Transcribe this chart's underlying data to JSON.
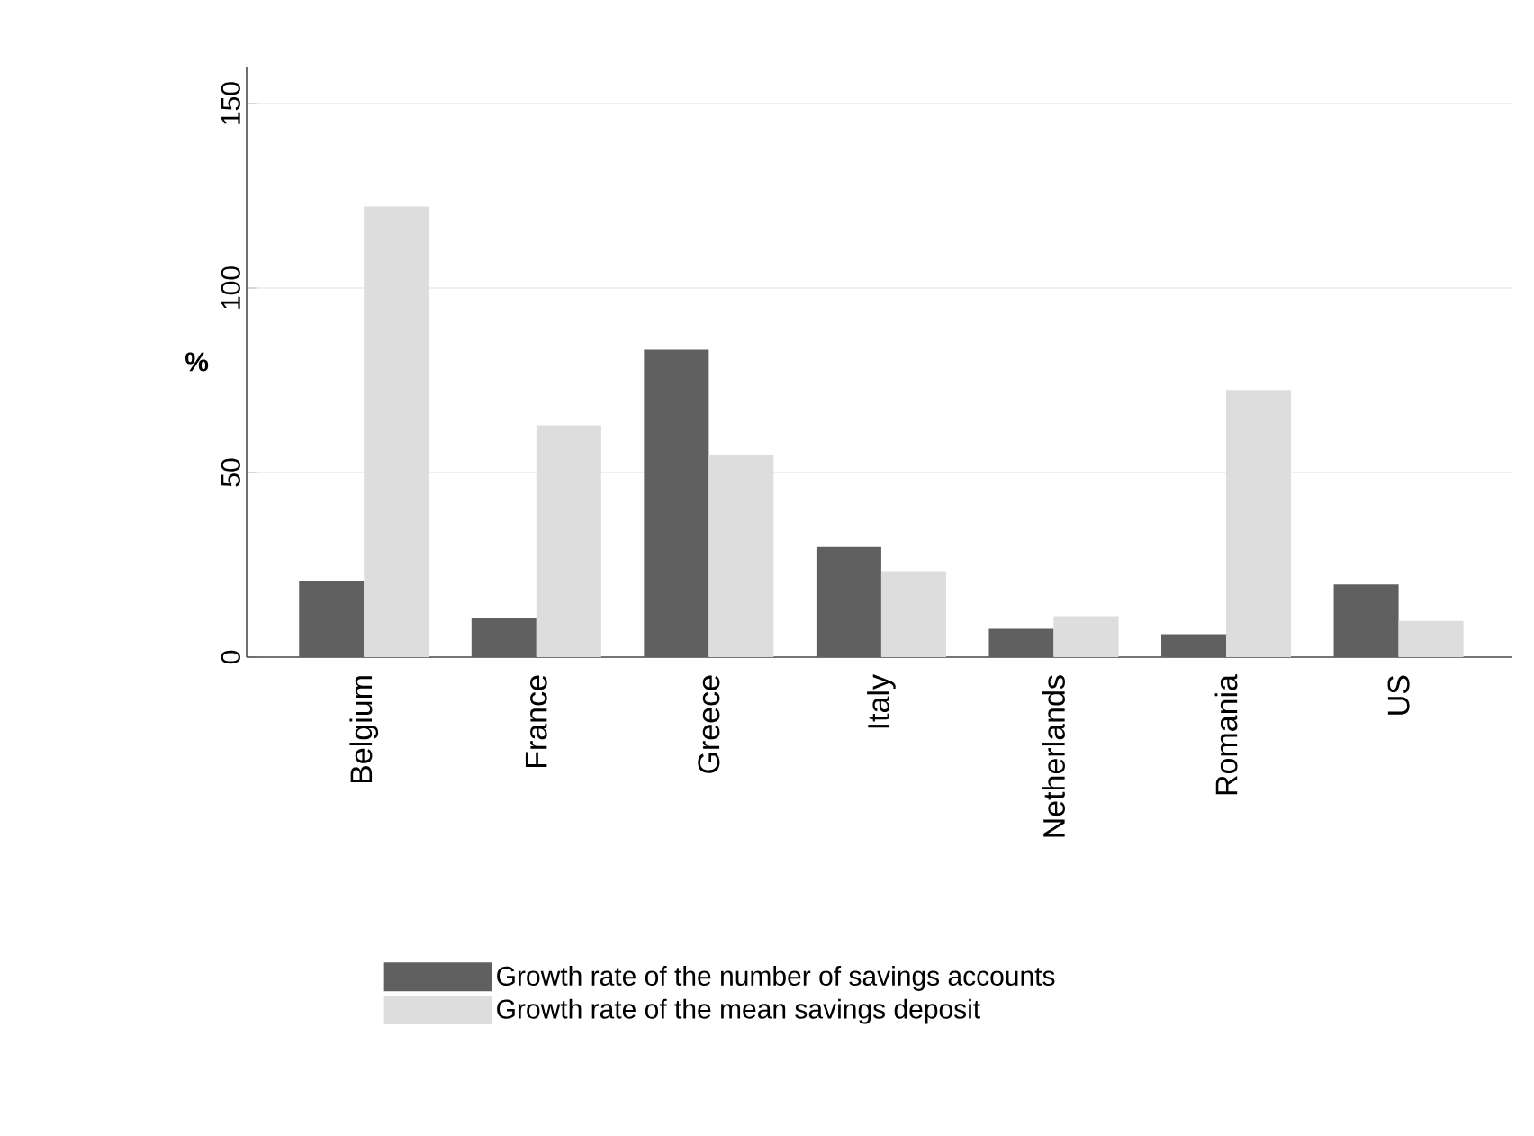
{
  "chart_data": {
    "type": "bar",
    "ylabel": "%",
    "categories": [
      "Belgium",
      "France",
      "Greece",
      "Italy",
      "Netherlands",
      "Romania",
      "US"
    ],
    "series": [
      {
        "name": "Growth rate of the number of savings accounts",
        "color": "#606060",
        "values": [
          20.7,
          10.6,
          83.3,
          29.8,
          7.7,
          6.2,
          19.7
        ]
      },
      {
        "name": "Growth rate of the mean savings deposit",
        "color": "#dddddd",
        "values": [
          122.1,
          62.8,
          54.6,
          23.3,
          11.1,
          72.4,
          9.8
        ]
      }
    ],
    "ylim": [
      0,
      160
    ],
    "yticks": [
      0,
      50,
      100,
      150
    ],
    "grid": "y",
    "legend": "bottom"
  }
}
